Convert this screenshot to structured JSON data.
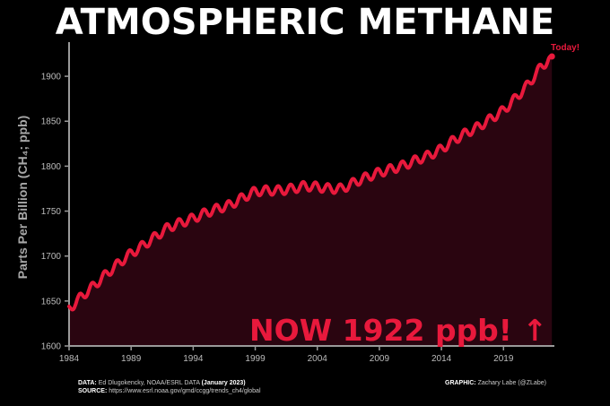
{
  "title": "ATMOSPHERIC METHANE",
  "footer": {
    "data_label": "DATA:",
    "data_text": "Ed Dlugokencky, NOAA/ESRL DATA",
    "data_date": "(January 2023)",
    "source_label": "SOURCE:",
    "source_text": "https://www.esrl.noaa.gov/gmd/ccgg/trends_ch4/global",
    "graphic_label": "GRAPHIC:",
    "graphic_text": "Zachary Labe (@ZLabe)"
  },
  "colors": {
    "background": "#000000",
    "line": "#e8193c",
    "fill": "#2a0510",
    "axis": "#9a9a9a",
    "text": "#ffffff"
  },
  "chart_data": {
    "type": "line",
    "title": "ATMOSPHERIC METHANE",
    "xlabel": "",
    "ylabel": "Parts Per Billion (CH₄; ppb)",
    "xlim": [
      1984,
      2023.1
    ],
    "ylim": [
      1600,
      1930
    ],
    "yticks": [
      1600,
      1650,
      1700,
      1750,
      1800,
      1850,
      1900
    ],
    "xticks": [
      1984,
      1989,
      1994,
      1999,
      2004,
      2009,
      2014,
      2019
    ],
    "grid": false,
    "fill_under": true,
    "seasonal_amplitude_ppb": 10,
    "series": [
      {
        "x": [
          1984.0,
          1985,
          1986,
          1987,
          1988,
          1989,
          1990,
          1991,
          1992,
          1993,
          1994,
          1995,
          1996,
          1997,
          1998,
          1999,
          2000,
          2001,
          2002,
          2003,
          2004,
          2005,
          2006,
          2007,
          2008,
          2009,
          2010,
          2011,
          2012,
          2013,
          2014,
          2015,
          2016,
          2017,
          2018,
          2019,
          2020,
          2021,
          2022,
          2022.9
        ],
        "values": [
          1641,
          1655,
          1667,
          1680,
          1692,
          1703,
          1712,
          1722,
          1732,
          1737,
          1742,
          1748,
          1753,
          1757,
          1765,
          1772,
          1773,
          1773,
          1775,
          1778,
          1777,
          1775,
          1775,
          1782,
          1788,
          1793,
          1797,
          1801,
          1807,
          1812,
          1819,
          1829,
          1837,
          1844,
          1853,
          1862,
          1876,
          1891,
          1910,
          1922
        ]
      }
    ],
    "annotations": [
      "Today!",
      "NOW 1922 ppb! ↑"
    ]
  }
}
